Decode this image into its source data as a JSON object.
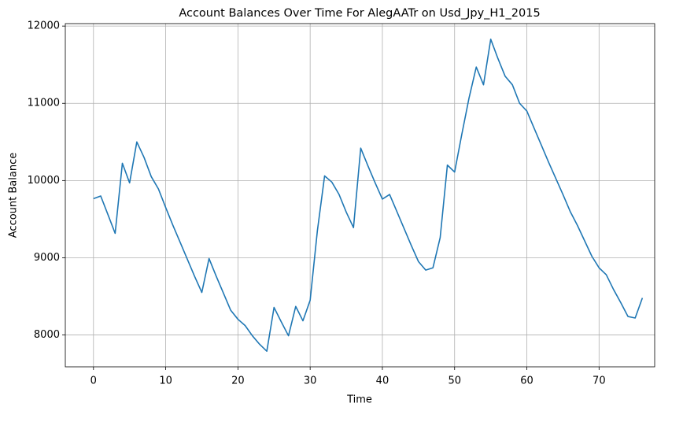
{
  "chart_data": {
    "type": "line",
    "title": "Account Balances Over Time For AlegAATr on Usd_Jpy_H1_2015",
    "x_label": "Time",
    "y_label": "Account Balance",
    "x": [
      0,
      1,
      2,
      3,
      4,
      5,
      6,
      7,
      8,
      9,
      10,
      11,
      12,
      13,
      14,
      15,
      16,
      17,
      18,
      19,
      20,
      21,
      22,
      23,
      24,
      25,
      26,
      27,
      28,
      29,
      30,
      31,
      32,
      33,
      34,
      35,
      36,
      37,
      38,
      39,
      40,
      41,
      42,
      43,
      44,
      45,
      46,
      47,
      48,
      49,
      50,
      51,
      52,
      53,
      54,
      55,
      56,
      57,
      58,
      59,
      60,
      61,
      62,
      63,
      64,
      65,
      66,
      67,
      68,
      69,
      70,
      71,
      72,
      73,
      74,
      75,
      76
    ],
    "series": [
      {
        "color": "#1f77b4",
        "values": [
          9765,
          9800,
          9560,
          9316,
          10224,
          9970,
          10500,
          10300,
          10050,
          9890,
          9650,
          9420,
          9200,
          8980,
          8760,
          8551,
          8990,
          8760,
          8540,
          8320,
          8204,
          8122,
          7990,
          7880,
          7790,
          8357,
          8170,
          7990,
          8370,
          8184,
          8450,
          9350,
          10060,
          9980,
          9820,
          9590,
          9390,
          10420,
          10190,
          9970,
          9760,
          9820,
          9600,
          9380,
          9160,
          8950,
          8840,
          8870,
          9260,
          10200,
          10110,
          10600,
          11070,
          11470,
          11240,
          11830,
          11580,
          11350,
          11240,
          11000,
          10900,
          10680,
          10460,
          10240,
          10030,
          9820,
          9600,
          9420,
          9220,
          9020,
          8870,
          8780,
          8590,
          8420,
          8240,
          8220,
          8480
        ]
      }
    ],
    "xlim": [
      -3.9,
      77.7
    ],
    "ylim": [
      7588,
      12032
    ],
    "xticks": [
      0,
      10,
      20,
      30,
      40,
      50,
      60,
      70
    ],
    "yticks": [
      8000,
      9000,
      10000,
      11000,
      12000
    ],
    "grid": true
  }
}
